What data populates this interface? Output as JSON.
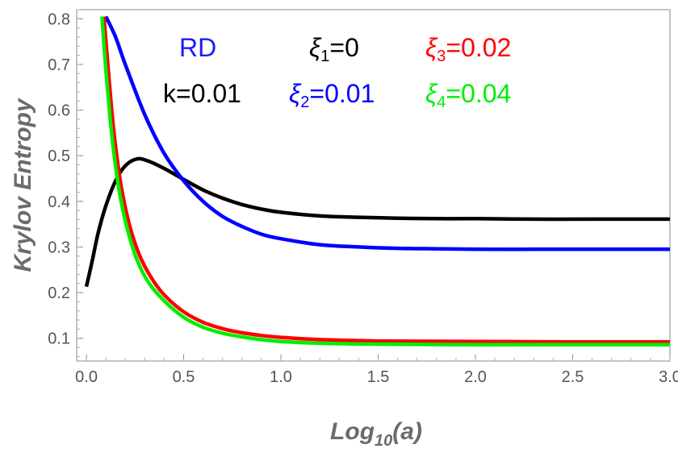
{
  "chart_data": {
    "type": "line",
    "xlabel": "Log",
    "xlabel_sub": "10",
    "xlabel_arg": "(a)",
    "ylabel": "Krylov Entropy",
    "xlim": [
      -0.05,
      3.0
    ],
    "ylim": [
      0.05,
      0.82
    ],
    "xticks": [
      0.0,
      0.5,
      1.0,
      1.5,
      2.0,
      2.5,
      3.0
    ],
    "xtick_labels": [
      "0.0",
      "0.5",
      "1.0",
      "1.5",
      "2.0",
      "2.5",
      "3.0"
    ],
    "yticks": [
      0.1,
      0.2,
      0.3,
      0.4,
      0.5,
      0.6,
      0.7,
      0.8
    ],
    "ytick_labels": [
      "0.1",
      "0.2",
      "0.3",
      "0.4",
      "0.5",
      "0.6",
      "0.7",
      "0.8"
    ],
    "grid": false,
    "annotations": {
      "model": {
        "text": "RD",
        "color": "#1a1aff"
      },
      "k": {
        "text": "k=0.01",
        "color": "#000000"
      }
    },
    "series": [
      {
        "name": "ξ1=0",
        "legend_sym": "ξ",
        "legend_sub": "1",
        "legend_val": "=0",
        "color": "#000000",
        "x": [
          0.0,
          0.03,
          0.06,
          0.1,
          0.15,
          0.2,
          0.26,
          0.32,
          0.4,
          0.5,
          0.6,
          0.7,
          0.8,
          0.9,
          1.0,
          1.2,
          1.4,
          1.6,
          1.8,
          2.0,
          2.3,
          2.6,
          3.0
        ],
        "y": [
          0.213,
          0.27,
          0.33,
          0.39,
          0.445,
          0.478,
          0.493,
          0.488,
          0.472,
          0.448,
          0.425,
          0.407,
          0.393,
          0.383,
          0.376,
          0.368,
          0.365,
          0.363,
          0.362,
          0.362,
          0.361,
          0.361,
          0.361
        ]
      },
      {
        "name": "ξ2=0.01",
        "legend_sym": "ξ",
        "legend_sub": "2",
        "legend_val": "=0.01",
        "color": "#0000ff",
        "x": [
          0.1,
          0.15,
          0.2,
          0.3,
          0.4,
          0.5,
          0.6,
          0.7,
          0.8,
          0.9,
          1.0,
          1.2,
          1.4,
          1.6,
          1.8,
          2.0,
          2.3,
          2.6,
          3.0
        ],
        "y": [
          0.805,
          0.76,
          0.7,
          0.59,
          0.505,
          0.445,
          0.4,
          0.367,
          0.345,
          0.328,
          0.318,
          0.305,
          0.3,
          0.297,
          0.296,
          0.295,
          0.295,
          0.295,
          0.295
        ]
      },
      {
        "name": "ξ3=0.02",
        "legend_sym": "ξ",
        "legend_sub": "3",
        "legend_val": "=0.02",
        "color": "#ff0000",
        "x": [
          0.09,
          0.11,
          0.13,
          0.15,
          0.18,
          0.22,
          0.27,
          0.33,
          0.4,
          0.5,
          0.6,
          0.7,
          0.8,
          0.9,
          1.0,
          1.2,
          1.5,
          2.0,
          2.5,
          3.0
        ],
        "y": [
          0.805,
          0.7,
          0.6,
          0.52,
          0.43,
          0.35,
          0.285,
          0.235,
          0.195,
          0.158,
          0.135,
          0.121,
          0.112,
          0.106,
          0.102,
          0.097,
          0.094,
          0.093,
          0.092,
          0.092
        ]
      },
      {
        "name": "ξ4=0.04",
        "legend_sym": "ξ",
        "legend_sub": "4",
        "legend_val": "=0.04",
        "color": "#00ee00",
        "x": [
          0.08,
          0.1,
          0.12,
          0.14,
          0.17,
          0.21,
          0.26,
          0.32,
          0.4,
          0.5,
          0.6,
          0.7,
          0.8,
          0.9,
          1.0,
          1.2,
          1.5,
          2.0,
          2.5,
          3.0
        ],
        "y": [
          0.805,
          0.69,
          0.59,
          0.51,
          0.42,
          0.34,
          0.272,
          0.222,
          0.182,
          0.146,
          0.124,
          0.111,
          0.103,
          0.097,
          0.093,
          0.089,
          0.087,
          0.086,
          0.086,
          0.086
        ]
      }
    ]
  }
}
